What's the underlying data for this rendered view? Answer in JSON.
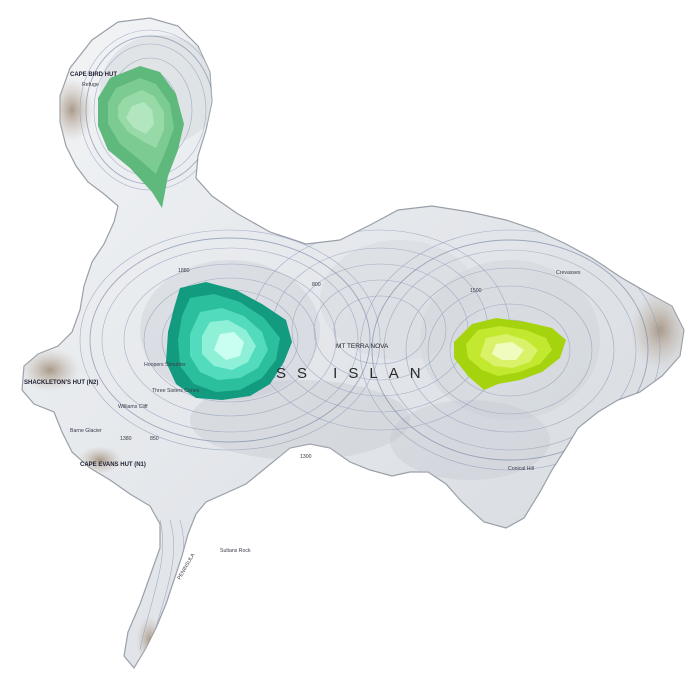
{
  "map": {
    "island_label": "SS   ISLAN",
    "peak_label": "MT TERRA NOVA",
    "places": {
      "cape_bird_hut": "CAPE BIRD HUT",
      "refuge": "Refuge",
      "shackletons_hut": "SHACKLETON'S HUT (N2)",
      "cape_evans_hut": "CAPE EVANS HUT (N1)",
      "hoopers_shoulder": "Hoopers Shoulder",
      "three_sisters_cones": "Three Sisters Cones",
      "williams_cliff": "Williams Cliff",
      "barne_glacier": "Barne Glacier",
      "sultans_rock": "Sultans Rock",
      "peninsula": "PENINSULA",
      "crevasses": "Crevasses",
      "conical_hill": "Conical Hill"
    },
    "elevations": [
      "1880",
      "1380",
      "1300",
      "850",
      "800",
      "1500"
    ],
    "heat_zones": [
      {
        "name": "north-zone",
        "colors": [
          "#5fb87c",
          "#7ccb92",
          "#98d9a8",
          "#b2e6bf"
        ]
      },
      {
        "name": "central-west-zone",
        "colors": [
          "#139b80",
          "#2bbf9e",
          "#52dbbc",
          "#8ff0d8",
          "#c8fff0"
        ]
      },
      {
        "name": "east-zone",
        "colors": [
          "#a5d30e",
          "#c2e830",
          "#daf26a",
          "#f0fbbe"
        ]
      }
    ]
  }
}
